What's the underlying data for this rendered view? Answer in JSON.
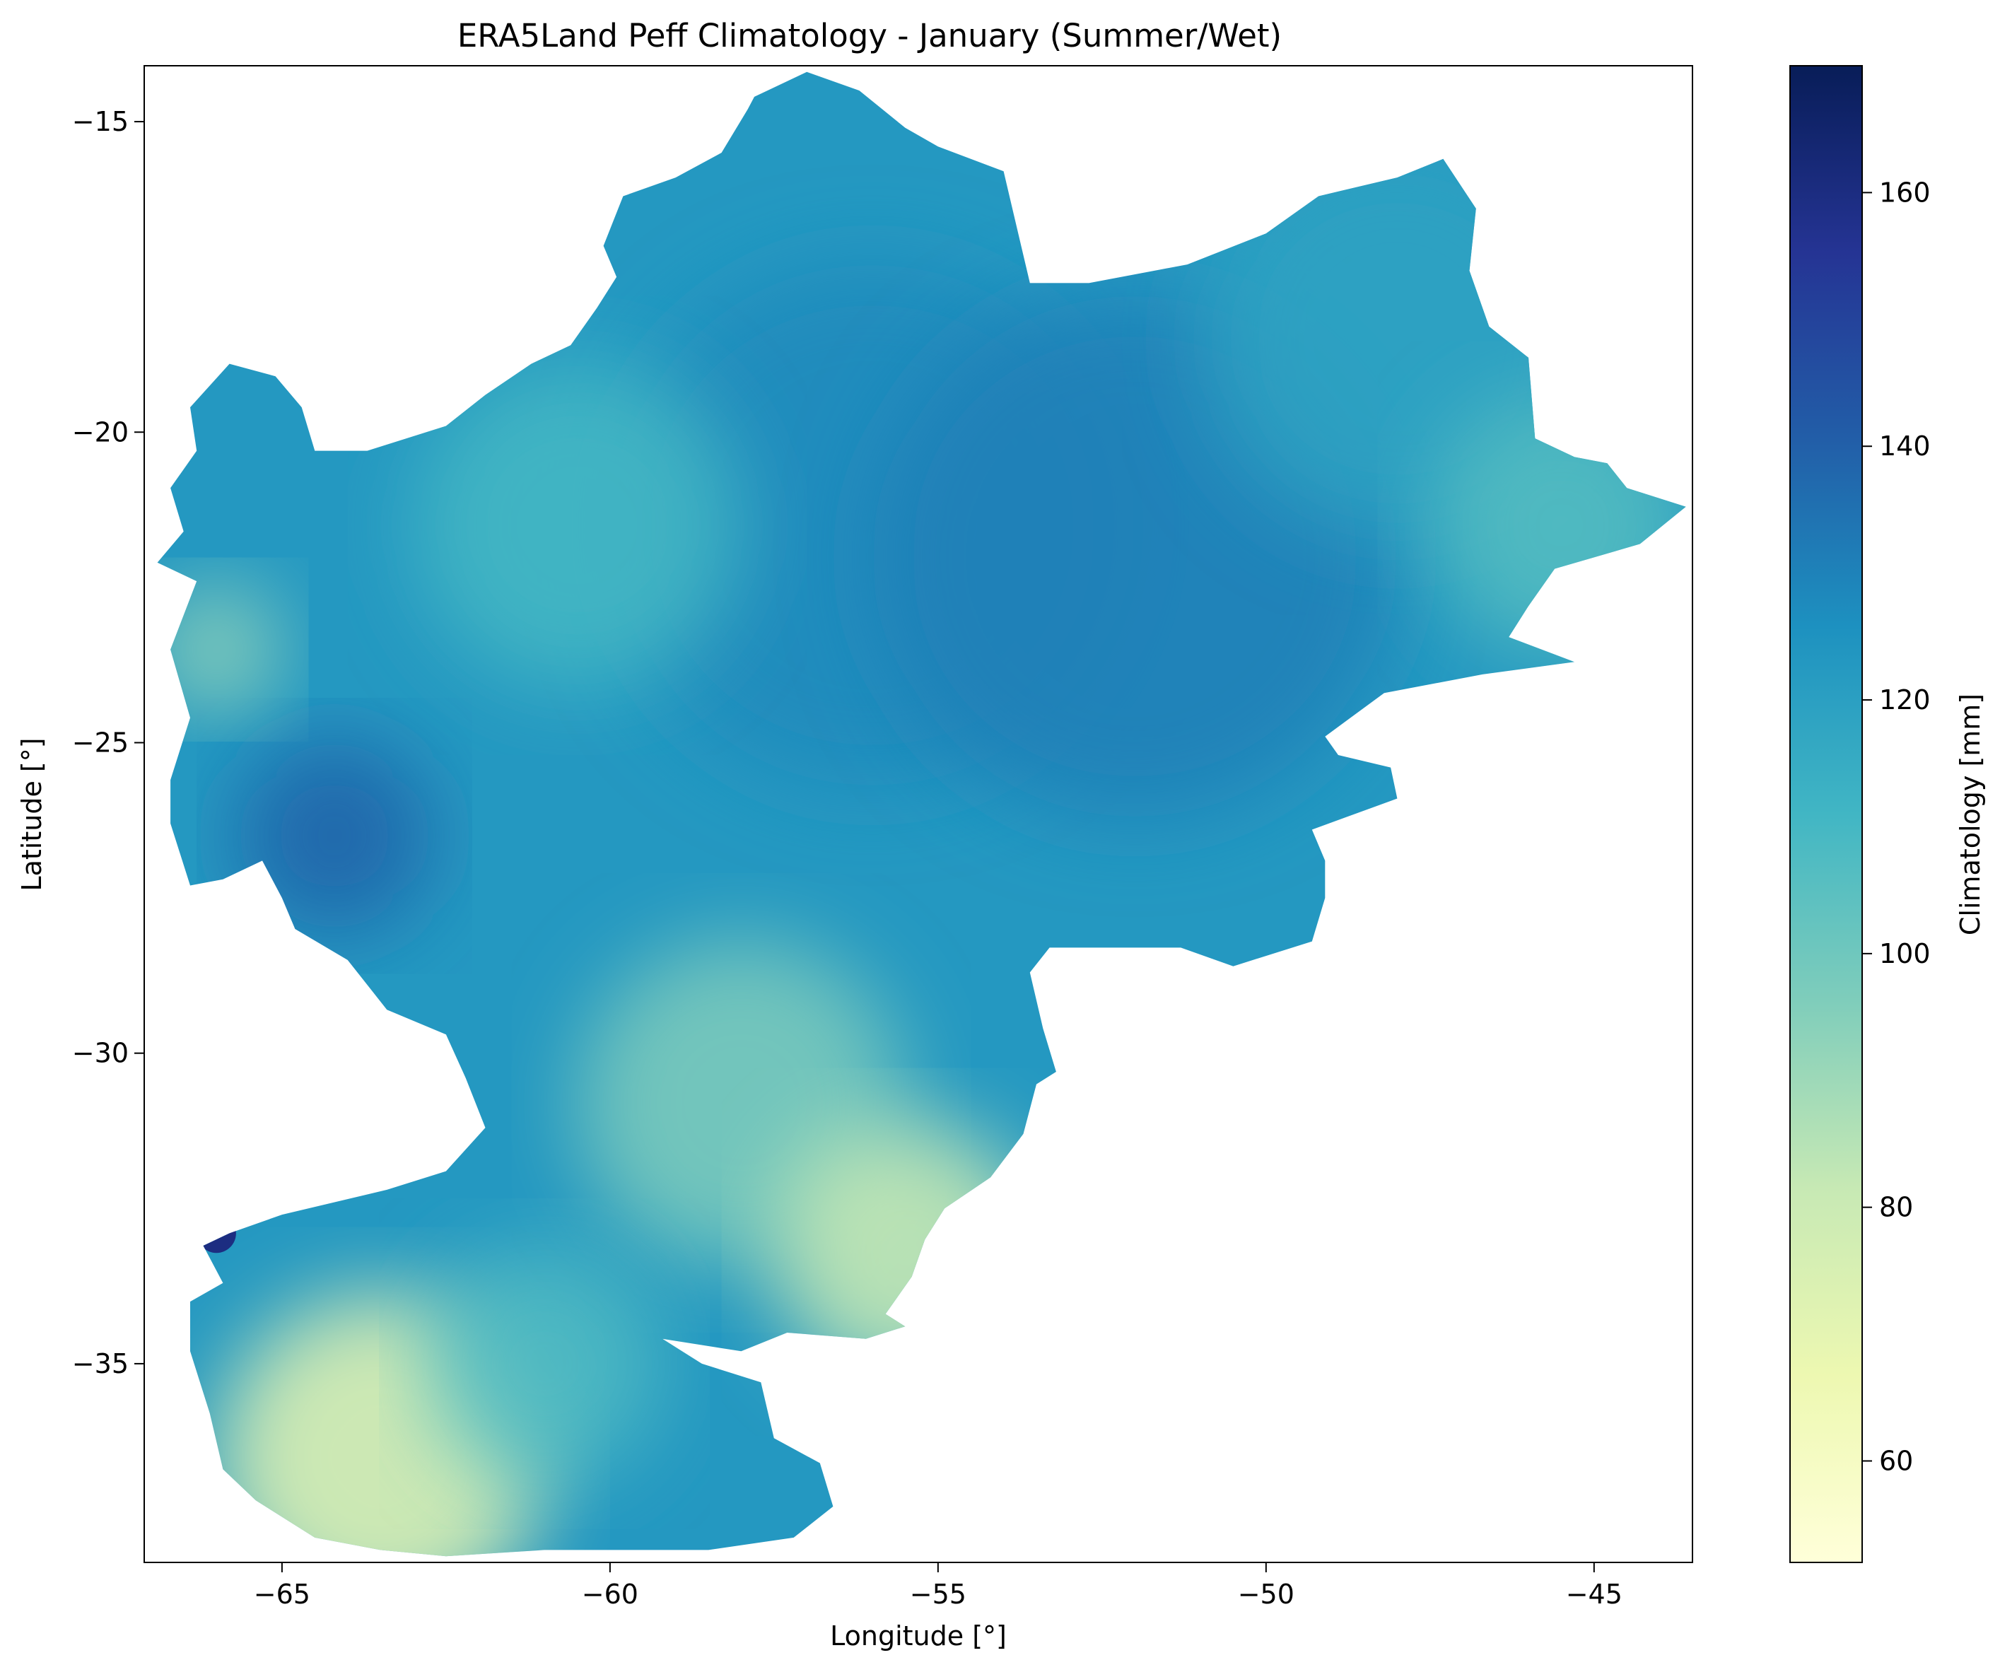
{
  "chart_data": {
    "type": "heatmap",
    "title": "ERA5Land Peff Climatology - January (Summer/Wet)",
    "xlabel": "Longitude [°]",
    "ylabel": "Latitude [°]",
    "xlim": [
      -67.1,
      -43.5
    ],
    "ylim": [
      -38.2,
      -14.1
    ],
    "xticks": [
      -65,
      -60,
      -55,
      -50,
      -45
    ],
    "xtick_labels": [
      "−65",
      "−60",
      "−55",
      "−50",
      "−45"
    ],
    "yticks": [
      -15,
      -20,
      -25,
      -30,
      -35
    ],
    "ytick_labels": [
      "−15",
      "−20",
      "−25",
      "−30",
      "−35"
    ],
    "grid": false,
    "colormap": "YlGnBu",
    "colormap_stops": [
      "#ffffd9",
      "#edf8b1",
      "#c7e9b4",
      "#7fcdbb",
      "#41b6c4",
      "#1d91c0",
      "#225ea8",
      "#253494",
      "#081d58"
    ],
    "colorbar": {
      "label": "Climatology [mm]",
      "vmin": 52,
      "vmax": 170,
      "ticks": [
        60,
        80,
        100,
        120,
        140,
        160
      ],
      "tick_labels": [
        "60",
        "80",
        "100",
        "120",
        "140",
        "160"
      ]
    },
    "region_outline_lonlat": [
      [
        -57.8,
        -14.6
      ],
      [
        -57.0,
        -14.2
      ],
      [
        -56.2,
        -14.5
      ],
      [
        -55.5,
        -15.1
      ],
      [
        -55.0,
        -15.4
      ],
      [
        -54.0,
        -15.8
      ],
      [
        -53.6,
        -17.6
      ],
      [
        -52.7,
        -17.6
      ],
      [
        -51.2,
        -17.3
      ],
      [
        -50.0,
        -16.8
      ],
      [
        -49.2,
        -16.2
      ],
      [
        -48.0,
        -15.9
      ],
      [
        -47.3,
        -15.6
      ],
      [
        -46.8,
        -16.4
      ],
      [
        -46.9,
        -17.4
      ],
      [
        -46.6,
        -18.3
      ],
      [
        -46.0,
        -18.8
      ],
      [
        -45.9,
        -20.1
      ],
      [
        -45.3,
        -20.4
      ],
      [
        -44.8,
        -20.5
      ],
      [
        -44.5,
        -20.9
      ],
      [
        -43.6,
        -21.2
      ],
      [
        -44.3,
        -21.8
      ],
      [
        -45.6,
        -22.2
      ],
      [
        -46.0,
        -22.8
      ],
      [
        -46.3,
        -23.3
      ],
      [
        -45.3,
        -23.7
      ],
      [
        -46.7,
        -23.9
      ],
      [
        -48.2,
        -24.2
      ],
      [
        -49.1,
        -24.9
      ],
      [
        -48.9,
        -25.2
      ],
      [
        -48.1,
        -25.4
      ],
      [
        -48.0,
        -25.9
      ],
      [
        -49.3,
        -26.4
      ],
      [
        -49.1,
        -26.9
      ],
      [
        -49.1,
        -27.5
      ],
      [
        -49.3,
        -28.2
      ],
      [
        -50.5,
        -28.6
      ],
      [
        -51.3,
        -28.3
      ],
      [
        -53.3,
        -28.3
      ],
      [
        -53.6,
        -28.7
      ],
      [
        -53.4,
        -29.6
      ],
      [
        -53.2,
        -30.3
      ],
      [
        -53.5,
        -30.5
      ],
      [
        -53.7,
        -31.3
      ],
      [
        -54.2,
        -32.0
      ],
      [
        -54.9,
        -32.5
      ],
      [
        -55.2,
        -33.0
      ],
      [
        -55.4,
        -33.6
      ],
      [
        -55.8,
        -34.2
      ],
      [
        -55.5,
        -34.4
      ],
      [
        -56.1,
        -34.6
      ],
      [
        -57.3,
        -34.5
      ],
      [
        -58.0,
        -34.8
      ],
      [
        -59.2,
        -34.6
      ],
      [
        -58.6,
        -35.0
      ],
      [
        -57.7,
        -35.3
      ],
      [
        -57.5,
        -36.2
      ],
      [
        -56.8,
        -36.6
      ],
      [
        -56.6,
        -37.3
      ],
      [
        -57.2,
        -37.8
      ],
      [
        -58.5,
        -38.0
      ],
      [
        -61.0,
        -38.0
      ],
      [
        -62.5,
        -38.1
      ],
      [
        -63.5,
        -38.0
      ],
      [
        -64.5,
        -37.8
      ],
      [
        -65.4,
        -37.2
      ],
      [
        -65.9,
        -36.7
      ],
      [
        -66.1,
        -35.8
      ],
      [
        -66.4,
        -34.8
      ],
      [
        -66.4,
        -34.0
      ],
      [
        -65.9,
        -33.7
      ],
      [
        -66.2,
        -33.1
      ],
      [
        -65.8,
        -32.9
      ],
      [
        -65.0,
        -32.6
      ],
      [
        -63.4,
        -32.2
      ],
      [
        -62.5,
        -31.9
      ],
      [
        -61.9,
        -31.2
      ],
      [
        -62.2,
        -30.4
      ],
      [
        -62.5,
        -29.7
      ],
      [
        -63.4,
        -29.3
      ],
      [
        -64.0,
        -28.5
      ],
      [
        -64.8,
        -28.0
      ],
      [
        -65.0,
        -27.5
      ],
      [
        -65.3,
        -26.9
      ],
      [
        -65.9,
        -27.2
      ],
      [
        -66.4,
        -27.3
      ],
      [
        -66.7,
        -26.3
      ],
      [
        -66.7,
        -25.6
      ],
      [
        -66.4,
        -24.6
      ],
      [
        -66.7,
        -23.5
      ],
      [
        -66.3,
        -22.4
      ],
      [
        -66.9,
        -22.1
      ],
      [
        -66.5,
        -21.6
      ],
      [
        -66.7,
        -20.9
      ],
      [
        -66.3,
        -20.3
      ],
      [
        -66.4,
        -19.6
      ],
      [
        -65.8,
        -18.9
      ],
      [
        -65.1,
        -19.1
      ],
      [
        -64.7,
        -19.6
      ],
      [
        -64.5,
        -20.3
      ],
      [
        -63.7,
        -20.3
      ],
      [
        -62.5,
        -19.9
      ],
      [
        -61.9,
        -19.4
      ],
      [
        -61.2,
        -18.9
      ],
      [
        -60.6,
        -18.6
      ],
      [
        -60.2,
        -18.0
      ],
      [
        -59.9,
        -17.5
      ],
      [
        -60.1,
        -17.0
      ],
      [
        -59.8,
        -16.2
      ],
      [
        -59.0,
        -15.9
      ],
      [
        -58.3,
        -15.5
      ],
      [
        -57.9,
        -14.8
      ]
    ],
    "value_patches": [
      {
        "lon": -56.0,
        "lat": -21.5,
        "value": 128,
        "radius_deg": 4.0
      },
      {
        "lon": -52.0,
        "lat": -22.0,
        "value": 131,
        "radius_deg": 4.0
      },
      {
        "lon": -48.0,
        "lat": -18.5,
        "value": 119,
        "radius_deg": 3.0
      },
      {
        "lon": -45.5,
        "lat": -21.5,
        "value": 106,
        "radius_deg": 2.0
      },
      {
        "lon": -60.5,
        "lat": -21.5,
        "value": 110,
        "radius_deg": 2.5
      },
      {
        "lon": -64.2,
        "lat": -26.5,
        "value": 140,
        "radius_deg": 1.5
      },
      {
        "lon": -66.0,
        "lat": -23.5,
        "value": 92,
        "radius_deg": 1.0
      },
      {
        "lon": -58.0,
        "lat": -30.8,
        "value": 96,
        "radius_deg": 2.5
      },
      {
        "lon": -55.5,
        "lat": -33.2,
        "value": 78,
        "radius_deg": 2.0
      },
      {
        "lon": -63.5,
        "lat": -36.5,
        "value": 68,
        "radius_deg": 2.5
      },
      {
        "lon": -61.0,
        "lat": -35.0,
        "value": 107,
        "radius_deg": 1.8
      },
      {
        "lon": -66.0,
        "lat": -32.9,
        "value": 160,
        "radius_deg": 0.3
      }
    ]
  }
}
